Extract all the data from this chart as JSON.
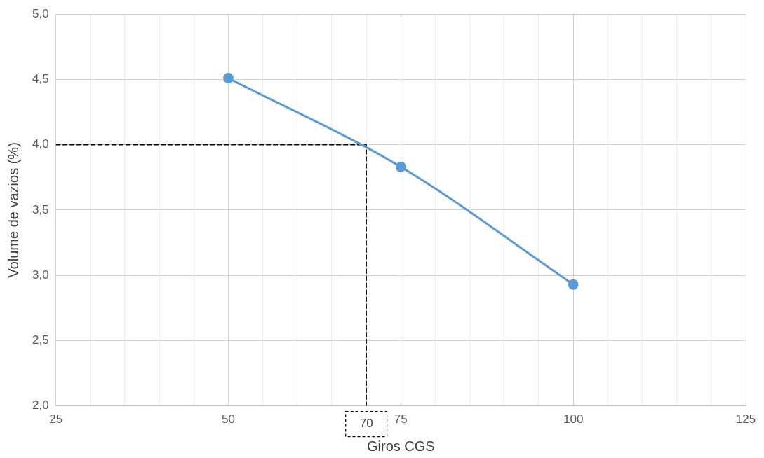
{
  "chart_data": {
    "type": "line",
    "xlabel": "Giros CGS",
    "ylabel": "Volume de vazios (%)",
    "series": [
      {
        "color": "#5b9bd5",
        "x": [
          50,
          75,
          100
        ],
        "values": [
          4.51,
          3.83,
          2.93
        ],
        "marker": "circle",
        "line_style": "solid"
      },
      {
        "color": "#000000",
        "x": [
          25,
          70,
          70
        ],
        "values": [
          4.0,
          4.0,
          2.0
        ],
        "marker": "none",
        "line_style": "dashed"
      }
    ],
    "xlim": [
      25,
      125
    ],
    "xticks": [
      25,
      {
        "value": 30,
        "label": null
      },
      {
        "value": 35,
        "label": null
      },
      {
        "value": 40,
        "label": null
      },
      {
        "value": 45,
        "label": null
      },
      50,
      {
        "value": 55,
        "label": null
      },
      {
        "value": 60,
        "label": null
      },
      {
        "value": 65,
        "label": null
      },
      {
        "value": 70,
        "label": null
      },
      75,
      {
        "value": 80,
        "label": null
      },
      {
        "value": 85,
        "label": null
      },
      {
        "value": 90,
        "label": null
      },
      {
        "value": 95,
        "label": null
      },
      100,
      {
        "value": 105,
        "label": null
      },
      {
        "value": 110,
        "label": null
      },
      {
        "value": 115,
        "label": null
      },
      {
        "value": 120,
        "label": null
      },
      125
    ],
    "ylim": [
      2.0,
      5.0
    ],
    "yticks": [
      {
        "value": 2.0,
        "label": "2,0"
      },
      {
        "value": 2.5,
        "label": "2,5"
      },
      {
        "value": 3.0,
        "label": "3,0"
      },
      {
        "value": 3.5,
        "label": "3,5"
      },
      {
        "value": 4.0,
        "label": "4,0"
      },
      {
        "value": 4.5,
        "label": "4,5"
      },
      {
        "value": 5.0,
        "label": "5,0"
      }
    ],
    "annotations": [
      {
        "text": "70",
        "x": 70,
        "y": 2.0
      }
    ],
    "grid": true,
    "legend": false
  }
}
